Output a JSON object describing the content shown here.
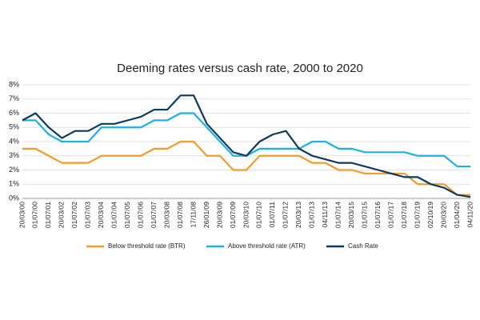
{
  "chart_data": {
    "type": "line",
    "title": "Deeming rates versus cash rate, 2000 to 2020",
    "categories": [
      "20/03/00",
      "01/07/00",
      "01/07/01",
      "20/03/02",
      "01/07/02",
      "01/07/03",
      "20/03/04",
      "01/07/04",
      "01/07/05",
      "01/07/06",
      "01/07/07",
      "20/03/08",
      "01/07/08",
      "17/11/08",
      "26/01/09",
      "20/03/09",
      "01/07/09",
      "20/03/10",
      "01/07/10",
      "01/07/11",
      "01/07/12",
      "20/03/13",
      "01/07/13",
      "04/11/13",
      "01/07/14",
      "20/03/15",
      "01/07/15",
      "01/07/16",
      "01/07/17",
      "01/07/18",
      "01/07/19",
      "02/10/19",
      "20/03/20",
      "01/04/20",
      "04/11/20"
    ],
    "series": [
      {
        "name": "Below threshold rate (BTR)",
        "color": "#f39c2c",
        "values": [
          3.5,
          3.5,
          3,
          2.5,
          2.5,
          2.5,
          3,
          3,
          3,
          3,
          3.5,
          3.5,
          4,
          4,
          3,
          3,
          2,
          2,
          3,
          3,
          3,
          3,
          2.5,
          2.5,
          2,
          2,
          1.75,
          1.75,
          1.75,
          1.75,
          1,
          1,
          1,
          0.25,
          0.25
        ]
      },
      {
        "name": "Above threshold rate (ATR)",
        "color": "#1fb1e6",
        "values": [
          5.5,
          5.5,
          4.5,
          4,
          4,
          4,
          5,
          5,
          5,
          5,
          5.5,
          5.5,
          6,
          6,
          5,
          4,
          3,
          3,
          3.5,
          3.5,
          3.5,
          3.5,
          4,
          4,
          3.5,
          3.5,
          3.25,
          3.25,
          3.25,
          3.25,
          3,
          3,
          3,
          2.25,
          2.25
        ]
      },
      {
        "name": "Cash Rate",
        "color": "#0d3a5c",
        "values": [
          5.5,
          6,
          5,
          4.25,
          4.75,
          4.75,
          5.25,
          5.25,
          5.5,
          5.75,
          6.25,
          6.25,
          7.25,
          7.25,
          5.25,
          4.25,
          3.25,
          3,
          4,
          4.5,
          4.75,
          3.5,
          3,
          2.75,
          2.5,
          2.5,
          2.25,
          2,
          1.75,
          1.5,
          1.5,
          1,
          0.75,
          0.25,
          0.1
        ]
      }
    ],
    "ylim": [
      0,
      8
    ],
    "yticks": [
      {
        "value": 0,
        "label": "0%"
      },
      {
        "value": 1,
        "label": "1%"
      },
      {
        "value": 2,
        "label": "2%"
      },
      {
        "value": 3,
        "label": "3%"
      },
      {
        "value": 4,
        "label": "4%"
      },
      {
        "value": 5,
        "label": "5%"
      },
      {
        "value": 6,
        "label": "6%"
      },
      {
        "value": 7,
        "label": "7%"
      },
      {
        "value": 8,
        "label": "8%"
      }
    ],
    "grid": true,
    "legend": "bottom"
  }
}
